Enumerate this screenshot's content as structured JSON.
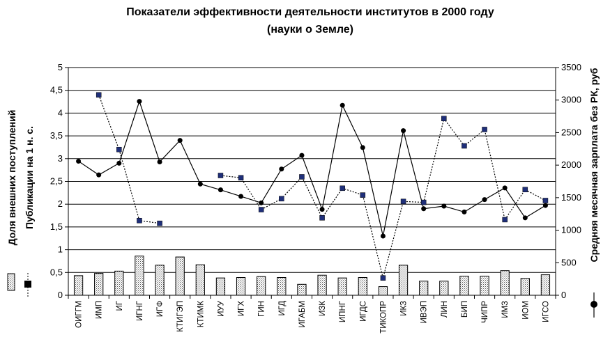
{
  "chart_data": {
    "type": "bar",
    "title": "Показатели эффективности деятельности институтов в 2000 году",
    "subtitle": "(науки о Земле)",
    "categories": [
      "ОИГГМ",
      "ИМП",
      "ИГ",
      "ИГНГ",
      "ИГФ",
      "КТИГЭП",
      "КТИМК",
      "ИУУ",
      "ИГХ",
      "ГИН",
      "ИГД",
      "ИГАБМ",
      "ИЗК",
      "ИПНГ",
      "ИГДС",
      "ТИКОПР",
      "ИКЗ",
      "ИВЭП",
      "ЛИН",
      "БИП",
      "ЧИПР",
      "ИМЗ",
      "ИОМ",
      "ИГСО"
    ],
    "series": [
      {
        "name": "Доля внешних поступлений",
        "type": "bar",
        "axis": "left",
        "values": [
          0.43,
          0.48,
          0.53,
          0.86,
          0.66,
          0.84,
          0.67,
          0.38,
          0.39,
          0.41,
          0.39,
          0.24,
          0.44,
          0.38,
          0.39,
          0.19,
          0.66,
          0.31,
          0.31,
          0.42,
          0.42,
          0.54,
          0.37,
          0.45
        ]
      },
      {
        "name": "Публикации на 1 н. с.",
        "type": "dotted-line-square",
        "axis": "left",
        "values": [
          null,
          4.4,
          3.2,
          1.64,
          1.58,
          null,
          null,
          2.63,
          2.58,
          1.88,
          2.12,
          2.6,
          1.7,
          2.35,
          2.2,
          0.38,
          2.06,
          2.04,
          3.88,
          3.28,
          3.64,
          1.66,
          2.32,
          2.08
        ]
      },
      {
        "name": "Средняя месячная зарплата без РК, руб",
        "type": "solid-line-circle",
        "axis": "right",
        "values": [
          2060,
          1850,
          2030,
          2980,
          2050,
          2380,
          1710,
          1620,
          1520,
          1420,
          1940,
          2150,
          1320,
          2920,
          2270,
          910,
          2530,
          1330,
          1370,
          1280,
          1470,
          1650,
          1190,
          1380
        ]
      }
    ],
    "y_left": {
      "min": 0,
      "max": 5,
      "ticks": [
        "0",
        "0,5",
        "1",
        "1,5",
        "2",
        "2,5",
        "3",
        "3,5",
        "4",
        "4,5",
        "5"
      ],
      "label_1": "Доля внешних поступлений",
      "label_2": "Публикации на 1 н. с."
    },
    "y_right": {
      "min": 0,
      "max": 3500,
      "ticks": [
        "0",
        "500",
        "1000",
        "1500",
        "2000",
        "2500",
        "3000",
        "3500"
      ],
      "label": "Средняя месячная зарплата без РК, руб"
    },
    "grid": "horizontal",
    "colors": {
      "bar_fill": "#e8e8e8",
      "line": "#000000",
      "square_marker": "#1f2f7a"
    }
  }
}
